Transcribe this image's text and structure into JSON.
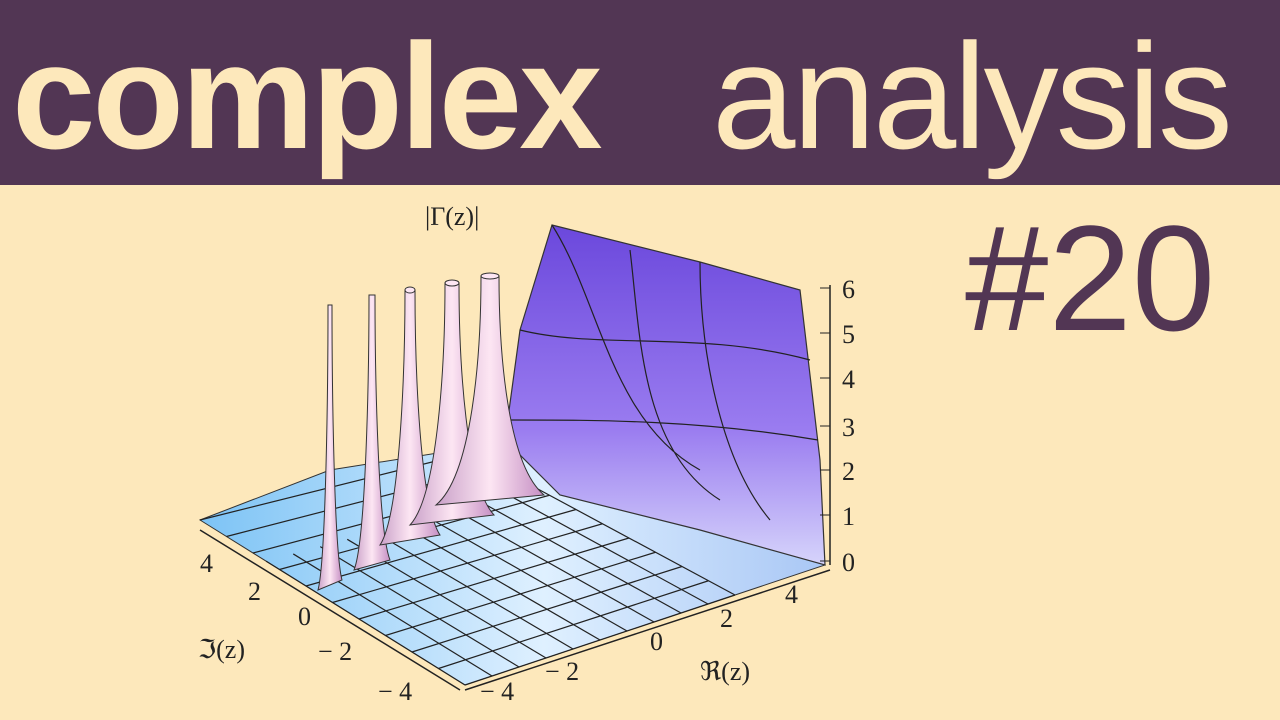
{
  "header": {
    "title_bold": "complex",
    "title_light": "analysis"
  },
  "episode": "#20",
  "plot": {
    "z_label": "|Γ(z)|",
    "x_label": "ℜ(z)",
    "y_label": "ℑ(z)",
    "z_ticks": [
      "0",
      "1",
      "2",
      "3",
      "4",
      "5",
      "6"
    ],
    "x_ticks": [
      "− 4",
      "− 2",
      "0",
      "2",
      "4"
    ],
    "y_ticks": [
      "− 4",
      "− 2",
      "0",
      "2",
      "4"
    ]
  }
}
